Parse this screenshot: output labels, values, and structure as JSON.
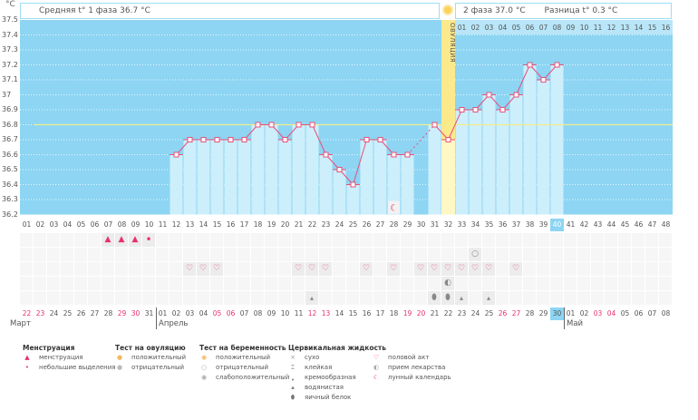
{
  "header": {
    "phase1": "Средняя t° 1 фаза 36.7 °C",
    "phase2": "2 фаза 37.0 °C",
    "difference": "Разница t° 0.3 °C",
    "ovulation_icon": "sun-icon"
  },
  "chart_data": {
    "type": "line",
    "unit": "°C",
    "ylim": [
      36.2,
      37.5
    ],
    "y_ticks": [
      "37.5",
      "37.4",
      "37.3",
      "37.2",
      "37.1",
      "37",
      "36.9",
      "36.8",
      "36.7",
      "36.6",
      "36.5",
      "36.4",
      "36.3",
      "36.2"
    ],
    "grid": true,
    "cycle_days": [
      "01",
      "02",
      "03",
      "04",
      "05",
      "06",
      "07",
      "08",
      "09",
      "10",
      "11",
      "12",
      "13",
      "14",
      "15",
      "16",
      "17",
      "18",
      "19",
      "20",
      "21",
      "22",
      "23",
      "24",
      "25",
      "26",
      "27",
      "28",
      "29",
      "30",
      "31",
      "32",
      "33",
      "34",
      "35",
      "36",
      "37",
      "38",
      "39",
      "40",
      "41",
      "42",
      "43",
      "44",
      "45",
      "46",
      "47",
      "48"
    ],
    "temperatures": [
      null,
      null,
      null,
      null,
      null,
      null,
      null,
      null,
      null,
      null,
      null,
      36.6,
      36.7,
      36.7,
      36.7,
      36.7,
      36.7,
      36.8,
      36.8,
      36.7,
      36.8,
      36.8,
      36.6,
      36.5,
      36.4,
      36.7,
      36.7,
      36.6,
      36.6,
      null,
      36.8,
      36.7,
      36.9,
      36.9,
      37.0,
      36.9,
      37.0,
      37.2,
      37.1,
      37.2,
      null,
      null,
      null,
      null,
      null,
      null,
      null,
      null
    ],
    "coverline": 36.8,
    "ovulation_day": 32,
    "ovulation_label": "ОВУЛЯЦИЯ",
    "phase2_day_numbers": [
      "01",
      "02",
      "03",
      "04",
      "05",
      "06",
      "07",
      "08",
      "09",
      "10",
      "11",
      "12",
      "13",
      "14",
      "15",
      "16"
    ],
    "today_day": 40,
    "moon_day": 28,
    "colors": {
      "background": "#8dd5f3",
      "bar": "#cdeefb",
      "line": "#e8507a",
      "coverline": "#f2ee8a",
      "ovulation": "#fce98c"
    }
  },
  "calendar": {
    "dates": [
      "22",
      "23",
      "24",
      "25",
      "26",
      "27",
      "28",
      "29",
      "30",
      "31",
      "01",
      "02",
      "03",
      "04",
      "05",
      "06",
      "07",
      "08",
      "09",
      "10",
      "11",
      "12",
      "13",
      "14",
      "15",
      "16",
      "17",
      "18",
      "19",
      "20",
      "21",
      "22",
      "23",
      "24",
      "25",
      "26",
      "27",
      "28",
      "29",
      "30",
      "01",
      "02",
      "03",
      "04",
      "05",
      "06",
      "07",
      "08"
    ],
    "weekend_days": [
      1,
      2,
      8,
      9,
      15,
      16,
      22,
      23,
      29,
      30,
      36,
      37,
      43,
      44
    ],
    "months": [
      {
        "label": "Март",
        "start_day": 1
      },
      {
        "label": "Апрель",
        "start_day": 11
      },
      {
        "label": "Май",
        "start_day": 41
      }
    ]
  },
  "marker_rows": [
    {
      "name": "menstruation-row",
      "items": [
        {
          "day": 7,
          "icon": "menstruation-icon",
          "glyph": "▲"
        },
        {
          "day": 8,
          "icon": "menstruation-icon",
          "glyph": "▲"
        },
        {
          "day": 9,
          "icon": "menstruation-icon",
          "glyph": "▲"
        },
        {
          "day": 10,
          "icon": "spotting-icon",
          "glyph": "•"
        }
      ]
    },
    {
      "name": "test-row",
      "items": [
        {
          "day": 34,
          "icon": "pregnancy-test-negative-icon",
          "glyph": "○"
        }
      ]
    },
    {
      "name": "intercourse-row",
      "days": [
        13,
        14,
        15,
        21,
        22,
        23,
        26,
        28,
        30,
        31,
        32,
        33,
        34,
        35,
        37
      ],
      "icon": "heart-icon",
      "glyph": "♡"
    },
    {
      "name": "medication-row",
      "items": [
        {
          "day": 32,
          "icon": "pill-icon",
          "glyph": "◐"
        }
      ]
    },
    {
      "name": "cervical-fluid-row",
      "items": [
        {
          "day": 22,
          "icon": "watery-icon",
          "glyph": "▴"
        },
        {
          "day": 31,
          "icon": "egg-white-icon",
          "glyph": "⬮"
        },
        {
          "day": 32,
          "icon": "egg-white-icon",
          "glyph": "⬮"
        },
        {
          "day": 33,
          "icon": "watery-icon",
          "glyph": "▴"
        },
        {
          "day": 35,
          "icon": "watery-icon",
          "glyph": "▴"
        }
      ]
    }
  ],
  "legend": {
    "menstruation": {
      "title": "Менструация",
      "items": [
        {
          "label": "менструация",
          "icon": "menstruation-icon",
          "glyph": "▲",
          "color": "#e8306a"
        },
        {
          "label": "небольшие выделения",
          "icon": "spotting-icon",
          "glyph": "•",
          "color": "#e8306a"
        }
      ]
    },
    "ovulation_test": {
      "title": "Тест на овуляцию",
      "items": [
        {
          "label": "положительный",
          "icon": "ovulation-positive-icon",
          "glyph": "●",
          "color": "#f5b860"
        },
        {
          "label": "отрицательный",
          "icon": "ovulation-negative-icon",
          "glyph": "●",
          "color": "#bbbbbb"
        }
      ]
    },
    "pregnancy_test": {
      "title": "Тест на беременность",
      "items": [
        {
          "label": "положительный",
          "icon": "pregnancy-positive-icon",
          "glyph": "◉",
          "color": "#f5b860"
        },
        {
          "label": "отрицательный",
          "icon": "pregnancy-negative-icon",
          "glyph": "○",
          "color": "#aaaaaa"
        },
        {
          "label": "слабоположительный",
          "icon": "pregnancy-weak-icon",
          "glyph": "◉",
          "color": "#aaaaaa"
        }
      ]
    },
    "cervical_fluid": {
      "title": "Цервикальная жидкость",
      "items": [
        {
          "label": "сухо",
          "icon": "dry-icon",
          "glyph": "×",
          "color": "#999999"
        },
        {
          "label": "клейкая",
          "icon": "sticky-icon",
          "glyph": "⌶",
          "color": "#777777"
        },
        {
          "label": "кремообразная",
          "icon": "creamy-icon",
          "glyph": "❟",
          "color": "#777777"
        },
        {
          "label": "водянистая",
          "icon": "watery-icon",
          "glyph": "▴",
          "color": "#777777"
        },
        {
          "label": "яичный белок",
          "icon": "egg-white-icon",
          "glyph": "⬮",
          "color": "#777777"
        }
      ]
    },
    "other": {
      "title": "",
      "items": [
        {
          "label": "половой акт",
          "icon": "heart-icon",
          "glyph": "♡",
          "color": "#e8306a"
        },
        {
          "label": "прием лекарства",
          "icon": "pill-icon",
          "glyph": "◐",
          "color": "#aaaaaa"
        },
        {
          "label": "лунный календарь",
          "icon": "moon-icon",
          "glyph": "☾",
          "color": "#e8306a"
        }
      ]
    }
  }
}
